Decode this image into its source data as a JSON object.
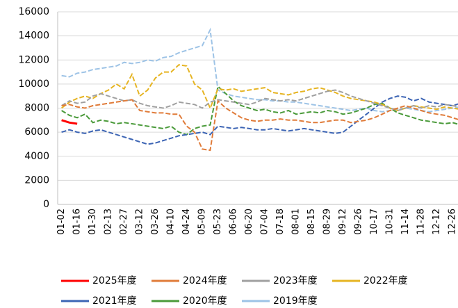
{
  "chart_data": {
    "type": "line",
    "categories": [
      "01-02",
      null,
      "01-16",
      null,
      "01-30",
      null,
      "02-13",
      null,
      "02-27",
      null,
      "03-12",
      null,
      "03-26",
      null,
      "04-10",
      null,
      "04-24",
      null,
      "05-09",
      null,
      "05-23",
      null,
      "06-06",
      null,
      "06-20",
      null,
      "07-04",
      null,
      "07-18",
      null,
      "08-01",
      null,
      "08-15",
      null,
      "08-29",
      null,
      "09-12",
      null,
      "09-26",
      null,
      "10-17",
      null,
      "10-31",
      null,
      "11-14",
      null,
      "11-28",
      null,
      "12-12",
      null,
      "12-26",
      null
    ],
    "ylim": [
      0,
      16000
    ],
    "yticks": [
      0,
      2000,
      4000,
      6000,
      8000,
      10000,
      12000,
      14000,
      16000
    ],
    "grid": true,
    "legend": "bottom",
    "series": [
      {
        "name": "2025年度",
        "color": "#ff0000",
        "style": "solid",
        "values": [
          7000,
          6800,
          6700,
          null,
          null,
          null,
          null,
          null,
          null,
          null,
          null,
          null,
          null,
          null,
          null,
          null,
          null,
          null,
          null,
          null,
          null,
          null,
          null,
          null,
          null,
          null,
          null,
          null,
          null,
          null,
          null,
          null,
          null,
          null,
          null,
          null,
          null,
          null,
          null,
          null,
          null,
          null,
          null,
          null,
          null,
          null,
          null,
          null,
          null,
          null,
          null,
          null
        ]
      },
      {
        "name": "2024年度",
        "color": "#e07b39",
        "style": "dashed",
        "values": [
          8200,
          8300,
          8100,
          8000,
          8200,
          8300,
          8400,
          8500,
          8600,
          8700,
          7800,
          7700,
          7600,
          7600,
          7500,
          7500,
          6500,
          6000,
          4600,
          4500,
          8600,
          8000,
          7600,
          7200,
          7000,
          6900,
          7000,
          7000,
          7100,
          7000,
          7000,
          6900,
          6800,
          6800,
          6900,
          7000,
          7000,
          6800,
          6900,
          7000,
          7200,
          7500,
          7800,
          8000,
          8200,
          8000,
          7800,
          7600,
          7500,
          7400,
          7200,
          7000
        ]
      },
      {
        "name": "2023年度",
        "color": "#a0a0a0",
        "style": "dashed",
        "values": [
          8200,
          8600,
          8400,
          8500,
          9000,
          9200,
          9000,
          8800,
          8600,
          8700,
          8400,
          8200,
          8100,
          8000,
          8200,
          8500,
          8400,
          8300,
          8000,
          8500,
          8700,
          8600,
          8500,
          8400,
          8300,
          8500,
          8800,
          8700,
          8600,
          8700,
          8600,
          8800,
          9000,
          9200,
          9400,
          9500,
          9300,
          9000,
          8800,
          8600,
          8400,
          8200,
          8000,
          7800,
          8000,
          8200,
          8000,
          8200,
          8100,
          8300,
          8200,
          8100
        ]
      },
      {
        "name": "2022年度",
        "color": "#e6b422",
        "style": "dashed",
        "values": [
          8000,
          8500,
          8800,
          9000,
          8800,
          9200,
          9500,
          10000,
          9600,
          10800,
          9000,
          9500,
          10500,
          11000,
          11000,
          11600,
          11500,
          10000,
          9500,
          8000,
          9600,
          9500,
          9600,
          9400,
          9500,
          9600,
          9700,
          9300,
          9200,
          9100,
          9300,
          9400,
          9600,
          9700,
          9500,
          9300,
          9000,
          8800,
          8700,
          8600,
          8500,
          8300,
          8000,
          7800,
          8000,
          8200,
          8100,
          8000,
          7900,
          8100,
          8000,
          7900
        ]
      },
      {
        "name": "2021年度",
        "color": "#3c64b4",
        "style": "dashed",
        "values": [
          6000,
          6200,
          6000,
          5900,
          6100,
          6200,
          6000,
          5800,
          5600,
          5400,
          5200,
          5000,
          5100,
          5300,
          5500,
          5700,
          5800,
          5900,
          6000,
          5800,
          6500,
          6400,
          6300,
          6400,
          6300,
          6200,
          6200,
          6300,
          6200,
          6100,
          6200,
          6300,
          6200,
          6100,
          6000,
          5900,
          6000,
          6500,
          7000,
          7500,
          8000,
          8500,
          8800,
          9000,
          8900,
          8600,
          8800,
          8500,
          8400,
          8300,
          8200,
          8400
        ]
      },
      {
        "name": "2020年度",
        "color": "#4a9a3a",
        "style": "dashed",
        "values": [
          7800,
          7400,
          7200,
          7500,
          6800,
          7000,
          6900,
          6700,
          6800,
          6700,
          6600,
          6500,
          6400,
          6300,
          6500,
          6000,
          5800,
          6300,
          6500,
          6600,
          9800,
          9200,
          8600,
          8200,
          8000,
          7800,
          7900,
          7700,
          7600,
          7800,
          7500,
          7600,
          7700,
          7600,
          7800,
          7700,
          7500,
          7600,
          7800,
          8000,
          8300,
          8400,
          8000,
          7600,
          7400,
          7200,
          7000,
          6900,
          6800,
          6700,
          6800,
          6600
        ]
      },
      {
        "name": "2019年度",
        "color": "#9dc3e6",
        "style": "dashed",
        "values": [
          10700,
          10600,
          10900,
          11000,
          11200,
          11300,
          11400,
          11500,
          11800,
          11700,
          11800,
          12000,
          11900,
          12200,
          12300,
          12600,
          12800,
          13000,
          13200,
          14500,
          9500,
          9200,
          9000,
          8900,
          8800,
          8700,
          8700,
          8600,
          8600,
          8500,
          8500,
          8400,
          8300,
          8200,
          8100,
          8000,
          7900,
          7800,
          7900,
          8000,
          7800,
          7700,
          7800,
          7900,
          8000,
          7900,
          7800,
          7700,
          7800,
          7900,
          8000,
          8100
        ]
      }
    ]
  }
}
